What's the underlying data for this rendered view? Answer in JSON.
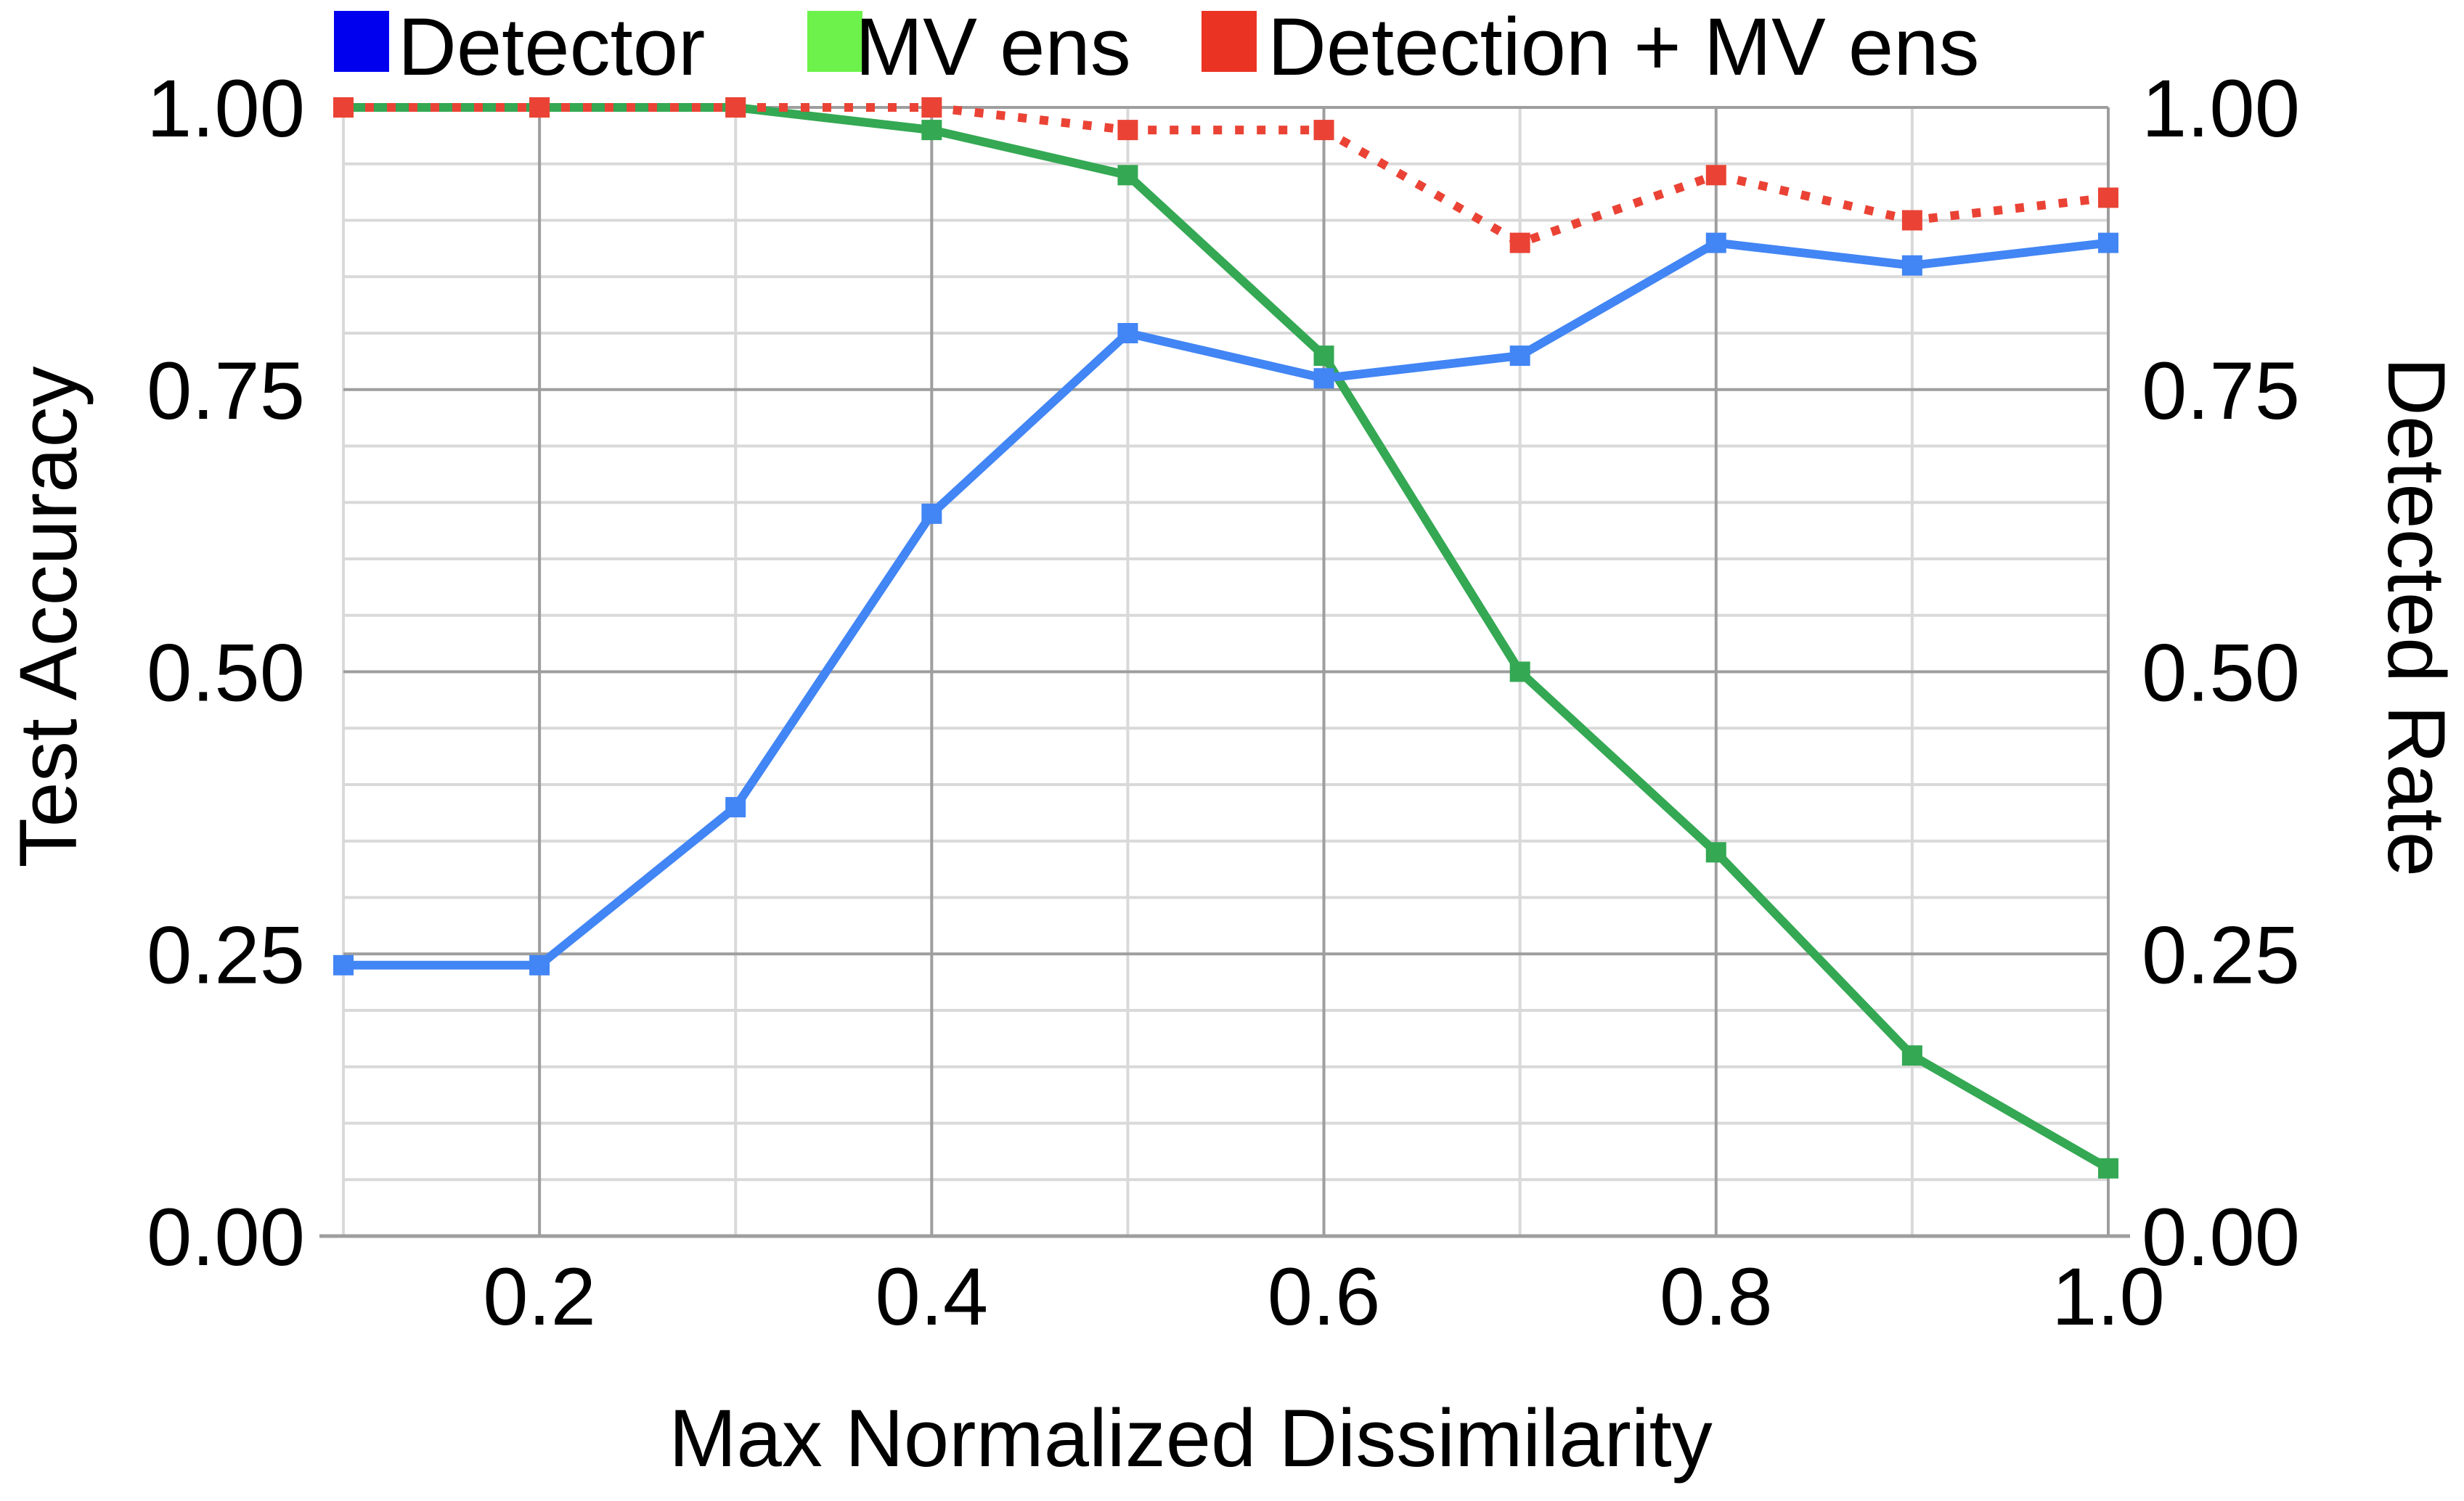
{
  "chart_data": {
    "type": "line",
    "x": [
      0.1,
      0.2,
      0.3,
      0.4,
      0.5,
      0.6,
      0.7,
      0.8,
      0.9,
      1.0
    ],
    "xlim": [
      0.1,
      1.0
    ],
    "ylim": [
      0,
      1.0
    ],
    "xlabel": "Max Normalized Dissimilarity",
    "ylabel": "Test Accuracy",
    "y2label": "Detected Rate",
    "x_ticks": [
      "0.2",
      "0.4",
      "0.6",
      "0.8",
      "1.0"
    ],
    "y_ticks": [
      "0.00",
      "0.25",
      "0.50",
      "0.75",
      "1.00"
    ],
    "y2_ticks": [
      "0.00",
      "0.25",
      "0.50",
      "0.75",
      "1.00"
    ],
    "grid": true,
    "legend_position": "top",
    "series": [
      {
        "name": "Detector",
        "legend_color": "#0000ee",
        "color": "#4285f4",
        "style": "solid",
        "values": [
          0.24,
          0.24,
          0.38,
          0.64,
          0.8,
          0.76,
          0.78,
          0.88,
          0.86,
          0.88
        ]
      },
      {
        "name": "MV ens",
        "legend_color": "#6cf24a",
        "color": "#34a853",
        "style": "solid",
        "values": [
          1.0,
          1.0,
          1.0,
          0.98,
          0.94,
          0.78,
          0.5,
          0.34,
          0.16,
          0.06
        ]
      },
      {
        "name": "Detection + MV ens",
        "legend_color": "#ea3323",
        "color": "#ea4335",
        "style": "dotted",
        "values": [
          1.0,
          1.0,
          1.0,
          1.0,
          0.98,
          0.98,
          0.88,
          0.94,
          0.9,
          0.92
        ]
      }
    ]
  }
}
